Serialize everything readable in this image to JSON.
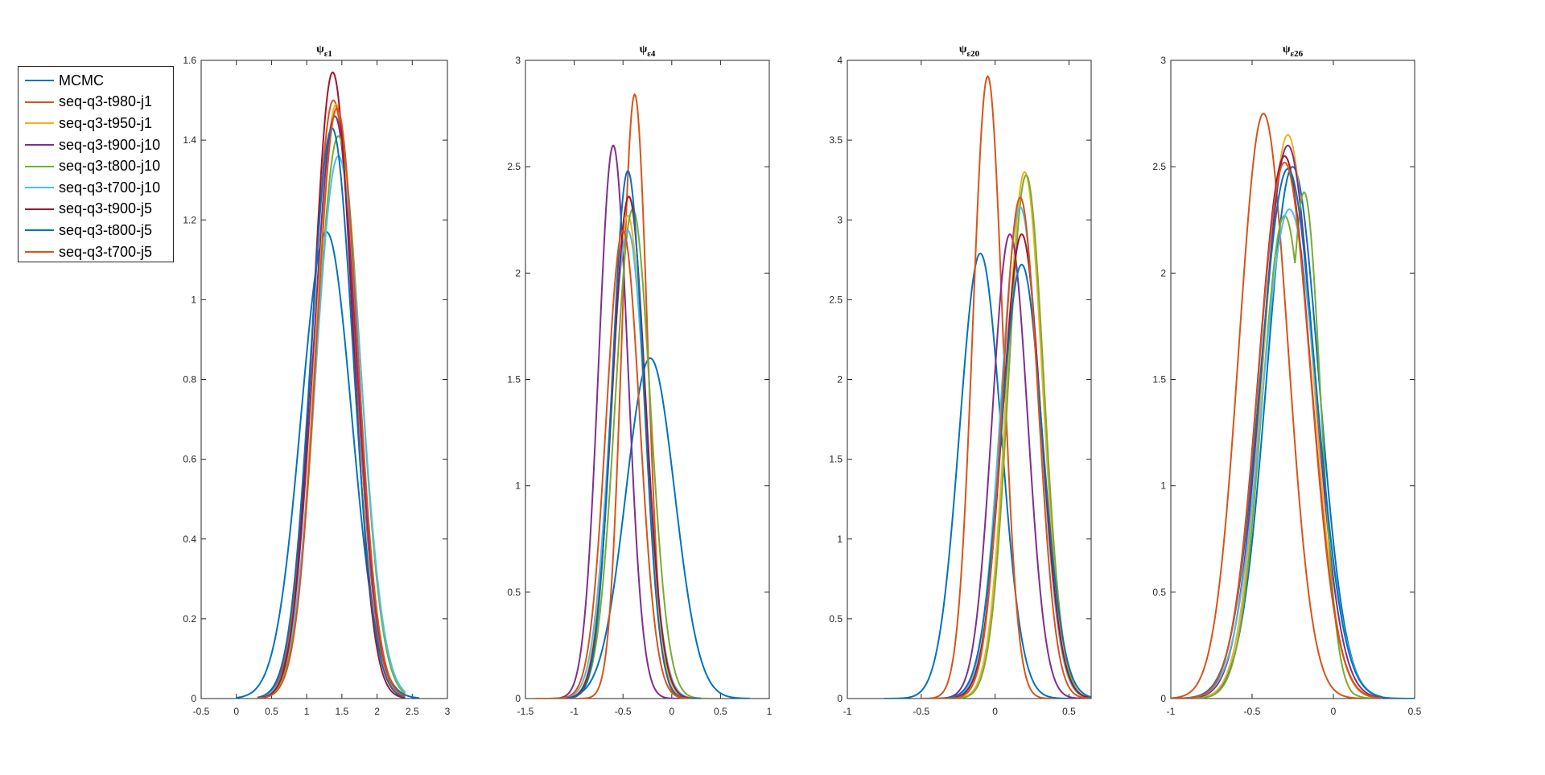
{
  "colors": [
    "#0072BD",
    "#D95319",
    "#EDB120",
    "#7E2F8E",
    "#77AC30",
    "#4DBEEE",
    "#A2142F",
    "#0072BD",
    "#D95319"
  ],
  "legend": [
    {
      "label": "MCMC",
      "color": "#0072BD"
    },
    {
      "label": "seq-q3-t980-j1",
      "color": "#D95319"
    },
    {
      "label": "seq-q3-t950-j1",
      "color": "#EDB120"
    },
    {
      "label": "seq-q3-t900-j10",
      "color": "#7E2F8E"
    },
    {
      "label": "seq-q3-t800-j10",
      "color": "#77AC30"
    },
    {
      "label": "seq-q3-t700-j10",
      "color": "#4DBEEE"
    },
    {
      "label": "seq-q3-t900-j5",
      "color": "#A2142F"
    },
    {
      "label": "seq-q3-t800-j5",
      "color": "#0072BD"
    },
    {
      "label": "seq-q3-t700-j5",
      "color": "#D95319"
    }
  ],
  "chart_data": [
    {
      "type": "line",
      "title_base": "ψ",
      "title_sub": "ε1",
      "xlim": [
        -0.5,
        3
      ],
      "ylim": [
        0,
        1.6
      ],
      "xticks": [
        "-0.5",
        "0",
        "0.5",
        "1",
        "1.5",
        "2",
        "2.5",
        "3"
      ],
      "xtick_values": [
        -0.5,
        0,
        0.5,
        1,
        1.5,
        2,
        2.5,
        3
      ],
      "yticks": [
        "0",
        "0.2",
        "0.4",
        "0.6",
        "0.8",
        "1",
        "1.2",
        "1.4",
        "1.6"
      ],
      "ytick_values": [
        0,
        0.2,
        0.4,
        0.6,
        0.8,
        1,
        1.2,
        1.4,
        1.6
      ],
      "series": [
        {
          "name": "MCMC",
          "peaks": [
            [
              1.28,
              1.17,
              0.36
            ]
          ],
          "range": [
            0,
            2.6
          ]
        },
        {
          "name": "seq-q3-t980-j1",
          "peaks": [
            [
              1.38,
              1.5,
              0.3
            ]
          ],
          "range": [
            0.3,
            2.4
          ]
        },
        {
          "name": "seq-q3-t950-j1",
          "peaks": [
            [
              1.42,
              1.49,
              0.29
            ]
          ],
          "range": [
            0.3,
            2.4
          ]
        },
        {
          "name": "seq-q3-t900-j10",
          "peaks": [
            [
              1.4,
              1.46,
              0.3
            ]
          ],
          "range": [
            0.3,
            2.4
          ]
        },
        {
          "name": "seq-q3-t800-j10",
          "peaks": [
            [
              1.45,
              1.41,
              0.31
            ]
          ],
          "range": [
            0.3,
            2.4
          ]
        },
        {
          "name": "seq-q3-t700-j10",
          "peaks": [
            [
              1.45,
              1.36,
              0.32
            ]
          ],
          "range": [
            0.3,
            2.4
          ]
        },
        {
          "name": "seq-q3-t900-j5",
          "peaks": [
            [
              1.37,
              1.57,
              0.28
            ]
          ],
          "range": [
            0.3,
            2.4
          ]
        },
        {
          "name": "seq-q3-t800-j5",
          "peaks": [
            [
              1.36,
              1.43,
              0.3
            ]
          ],
          "range": [
            0.3,
            2.4
          ]
        },
        {
          "name": "seq-q3-t700-j5",
          "peaks": [
            [
              1.43,
              1.48,
              0.29
            ]
          ],
          "range": [
            0.3,
            2.4
          ]
        }
      ]
    },
    {
      "type": "line",
      "title_base": "ψ",
      "title_sub": "ε4",
      "xlim": [
        -1.5,
        1
      ],
      "ylim": [
        0,
        3
      ],
      "xticks": [
        "-1.5",
        "-1",
        "-0.5",
        "0",
        "0.5",
        "1"
      ],
      "xtick_values": [
        -1.5,
        -1,
        -0.5,
        0,
        0.5,
        1
      ],
      "yticks": [
        "0",
        "0.5",
        "1",
        "1.5",
        "2",
        "2.5",
        "3"
      ],
      "ytick_values": [
        0,
        0.5,
        1,
        1.5,
        2,
        2.5,
        3
      ],
      "series": [
        {
          "name": "MCMC",
          "peaks": [
            [
              -0.22,
              1.6,
              0.25
            ]
          ],
          "range": [
            -1.2,
            0.8
          ]
        },
        {
          "name": "seq-q3-t980-j1",
          "peaks": [
            [
              -0.38,
              2.84,
              0.13
            ]
          ],
          "range": [
            -1.4,
            0.2
          ]
        },
        {
          "name": "seq-q3-t950-j1",
          "peaks": [
            [
              -0.45,
              2.27,
              0.17
            ]
          ],
          "range": [
            -1.2,
            0.3
          ]
        },
        {
          "name": "seq-q3-t900-j10",
          "peaks": [
            [
              -0.6,
              2.6,
              0.15
            ]
          ],
          "range": [
            -1.3,
            0.1
          ]
        },
        {
          "name": "seq-q3-t800-j10",
          "peaks": [
            [
              -0.4,
              2.3,
              0.18
            ]
          ],
          "range": [
            -1.2,
            0.4
          ]
        },
        {
          "name": "seq-q3-t700-j10",
          "peaks": [
            [
              -0.45,
              2.2,
              0.18
            ]
          ],
          "range": [
            -1.2,
            0.3
          ]
        },
        {
          "name": "seq-q3-t900-j5",
          "peaks": [
            [
              -0.44,
              2.36,
              0.17
            ]
          ],
          "range": [
            -1.2,
            0.3
          ]
        },
        {
          "name": "seq-q3-t800-j5",
          "peaks": [
            [
              -0.45,
              2.48,
              0.16
            ]
          ],
          "range": [
            -1.2,
            0.3
          ]
        },
        {
          "name": "seq-q3-t700-j5",
          "peaks": [
            [
              -0.5,
              2.2,
              0.17
            ]
          ],
          "range": [
            -1.3,
            0.2
          ]
        }
      ]
    },
    {
      "type": "line",
      "title_base": "ψ",
      "title_sub": "ε20",
      "xlim": [
        -1,
        0.65
      ],
      "ylim": [
        0,
        4
      ],
      "xticks": [
        "-1",
        "-0.5",
        "0",
        "0.5"
      ],
      "xtick_values": [
        -1,
        -0.5,
        0,
        0.5
      ],
      "yticks": [
        "0",
        "0.5",
        "1",
        "1.5",
        "2",
        "2.5",
        "3",
        "3.5",
        "4"
      ],
      "ytick_values": [
        0,
        0.5,
        1,
        1.5,
        2,
        2.5,
        3,
        3.5,
        4
      ],
      "series": [
        {
          "name": "MCMC",
          "peaks": [
            [
              -0.1,
              2.79,
              0.14
            ]
          ],
          "range": [
            -0.75,
            0.65
          ]
        },
        {
          "name": "seq-q3-t980-j1",
          "peaks": [
            [
              -0.05,
              3.9,
              0.1
            ]
          ],
          "range": [
            -0.5,
            0.4
          ]
        },
        {
          "name": "seq-q3-t950-j1",
          "peaks": [
            [
              0.2,
              3.3,
              0.12
            ]
          ],
          "range": [
            -0.4,
            0.65
          ]
        },
        {
          "name": "seq-q3-t900-j10",
          "peaks": [
            [
              0.1,
              2.91,
              0.12
            ]
          ],
          "range": [
            -0.4,
            0.6
          ]
        },
        {
          "name": "seq-q3-t800-j10",
          "peaks": [
            [
              0.21,
              3.28,
              0.12
            ]
          ],
          "range": [
            -0.4,
            0.65
          ]
        },
        {
          "name": "seq-q3-t700-j10",
          "peaks": [
            [
              0.17,
              3.08,
              0.13
            ]
          ],
          "range": [
            -0.4,
            0.65
          ]
        },
        {
          "name": "seq-q3-t900-j5",
          "peaks": [
            [
              0.18,
              2.91,
              0.13
            ]
          ],
          "range": [
            -0.45,
            0.65
          ]
        },
        {
          "name": "seq-q3-t800-j5",
          "peaks": [
            [
              0.18,
              2.72,
              0.14
            ]
          ],
          "range": [
            -0.45,
            0.65
          ]
        },
        {
          "name": "seq-q3-t700-j5",
          "peaks": [
            [
              0.17,
              3.14,
              0.12
            ]
          ],
          "range": [
            -0.45,
            0.65
          ]
        }
      ]
    },
    {
      "type": "line",
      "title_base": "ψ",
      "title_sub": "ε26",
      "xlim": [
        -1,
        0.5
      ],
      "ylim": [
        0,
        3
      ],
      "xticks": [
        "-1",
        "-0.5",
        "0",
        "0.5"
      ],
      "xtick_values": [
        -1,
        -0.5,
        0,
        0.5
      ],
      "yticks": [
        "0",
        "0.5",
        "1",
        "1.5",
        "2",
        "2.5",
        "3"
      ],
      "ytick_values": [
        0,
        0.5,
        1,
        1.5,
        2,
        2.5,
        3
      ],
      "series": [
        {
          "name": "MCMC",
          "peaks": [
            [
              -0.25,
              2.5,
              0.16
            ]
          ],
          "range": [
            -1.0,
            0.5
          ]
        },
        {
          "name": "seq-q3-t980-j1",
          "peaks": [
            [
              -0.43,
              2.75,
              0.15
            ]
          ],
          "range": [
            -1.0,
            0.2
          ]
        },
        {
          "name": "seq-q3-t950-j1",
          "peaks": [
            [
              -0.28,
              2.65,
              0.15
            ]
          ],
          "range": [
            -1.0,
            0.3
          ]
        },
        {
          "name": "seq-q3-t900-j10",
          "peaks": [
            [
              -0.28,
              2.6,
              0.16
            ]
          ],
          "range": [
            -1.0,
            0.3
          ]
        },
        {
          "name": "seq-q3-t800-j10",
          "peaks": [
            [
              -0.3,
              2.27,
              0.14
            ],
            [
              -0.18,
              2.38,
              0.1
            ]
          ],
          "range": [
            -1.0,
            0.3
          ]
        },
        {
          "name": "seq-q3-t700-j10",
          "peaks": [
            [
              -0.27,
              2.3,
              0.17
            ]
          ],
          "range": [
            -1.0,
            0.3
          ]
        },
        {
          "name": "seq-q3-t900-j5",
          "peaks": [
            [
              -0.3,
              2.55,
              0.16
            ]
          ],
          "range": [
            -1.0,
            0.3
          ]
        },
        {
          "name": "seq-q3-t800-j5",
          "peaks": [
            [
              -0.28,
              2.49,
              0.17
            ]
          ],
          "range": [
            -1.0,
            0.3
          ]
        },
        {
          "name": "seq-q3-t700-j5",
          "peaks": [
            [
              -0.3,
              2.52,
              0.16
            ]
          ],
          "range": [
            -1.0,
            0.3
          ]
        }
      ]
    }
  ]
}
